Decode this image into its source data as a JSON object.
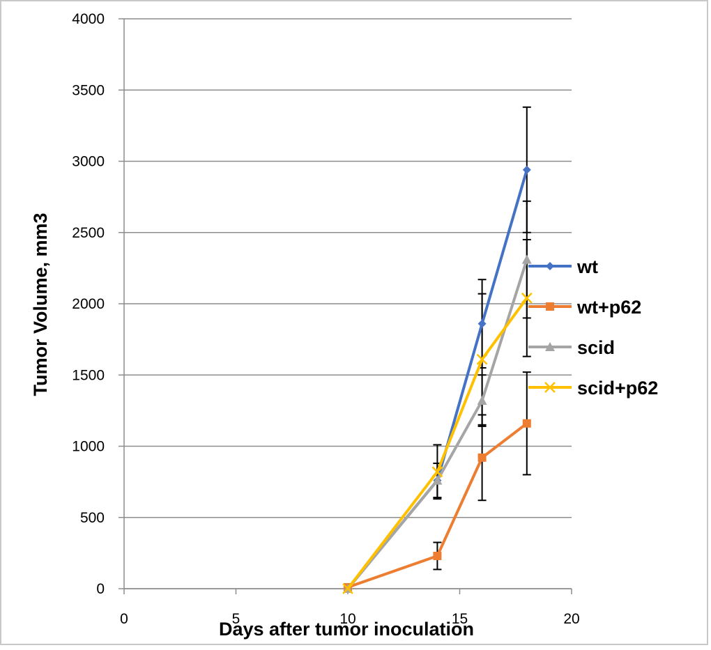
{
  "chart_data": {
    "type": "line",
    "title": "",
    "xlabel": "Days after tumor inoculation",
    "ylabel": "Tumor Volume, mm3",
    "xlim": [
      0,
      20
    ],
    "ylim": [
      0,
      4000
    ],
    "xticks": [
      0,
      5,
      10,
      15,
      20
    ],
    "yticks": [
      0,
      500,
      1000,
      1500,
      2000,
      2500,
      3000,
      3500,
      4000
    ],
    "grid": "horizontal",
    "legend_position": "right",
    "series": [
      {
        "name": "wt",
        "color": "#4472C4",
        "marker": "diamond",
        "x": [
          10,
          14,
          16,
          18
        ],
        "y": [
          0,
          760,
          1860,
          2940
        ],
        "error": [
          0,
          120,
          310,
          440
        ]
      },
      {
        "name": "wt+p62",
        "color": "#ED7D31",
        "marker": "square",
        "x": [
          10,
          14,
          16,
          18
        ],
        "y": [
          10,
          230,
          920,
          1160
        ],
        "error": [
          0,
          95,
          300,
          360
        ]
      },
      {
        "name": "scid",
        "color": "#A5A5A5",
        "marker": "triangle",
        "x": [
          10,
          14,
          16,
          18
        ],
        "y": [
          0,
          760,
          1320,
          2310
        ],
        "error": [
          0,
          120,
          180,
          410
        ]
      },
      {
        "name": "scid+p62",
        "color": "#FFC000",
        "marker": "x",
        "x": [
          10,
          14,
          16,
          18
        ],
        "y": [
          0,
          820,
          1610,
          2040
        ],
        "error": [
          0,
          190,
          460,
          410
        ]
      }
    ]
  }
}
